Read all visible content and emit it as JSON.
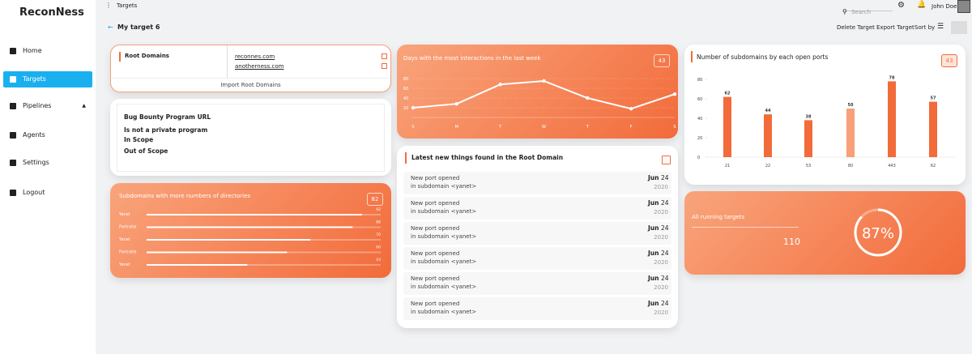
{
  "sidebar": {
    "brand": "ReconNess",
    "nav": [
      "Home",
      "Targets",
      "Pipelines",
      "Agents",
      "Settings",
      "Logout"
    ]
  },
  "topbar": {
    "title": "Targets",
    "search": "Search",
    "user": "John Doe"
  },
  "header": {
    "target": "My target 6",
    "actions": [
      "Delete Target",
      "Export Target",
      "Sort by"
    ]
  },
  "root_domains": {
    "title": "Root Domains",
    "domains": [
      "reconnes.com",
      "anotherness.com"
    ],
    "button": "Import Root Domains"
  },
  "program": {
    "lines": [
      "Bug Bounty Program URL",
      "Is not a private program",
      "In Scope",
      "Out of Scope"
    ]
  },
  "directories": {
    "type": "bar",
    "orientation": "horizontal",
    "title": "Subdomains with more numbers of directories",
    "badge": "82",
    "categories": [
      "Yanet",
      "Portraite",
      "Yanet",
      "Portraite",
      "Yanet"
    ],
    "values": [
      92,
      88,
      70,
      60,
      43
    ],
    "xlim": [
      0,
      100
    ]
  },
  "interactions": {
    "type": "line",
    "title": "Days with the most interactions in the last week",
    "badge": "43",
    "categories": [
      "S",
      "M",
      "T",
      "W",
      "T",
      "F",
      "S"
    ],
    "values": [
      20,
      28,
      68,
      75,
      40,
      18,
      48
    ],
    "ylim": [
      0,
      80
    ],
    "yticks": [
      20,
      40,
      60,
      80
    ]
  },
  "latest": {
    "title": "Latest new things found in the Root Domain",
    "items": [
      {
        "text": "New port opened",
        "sub": "in subdomain <yanet>",
        "month": "Jun",
        "day": "24",
        "year": "2020"
      },
      {
        "text": "New port opened",
        "sub": "in subdomain <yanet>",
        "month": "Jun",
        "day": "24",
        "year": "2020"
      },
      {
        "text": "New port opened",
        "sub": "in subdomain <yanet>",
        "month": "Jun",
        "day": "24",
        "year": "2020"
      },
      {
        "text": "New port opened",
        "sub": "in subdomain <yanet>",
        "month": "Jun",
        "day": "24",
        "year": "2020"
      },
      {
        "text": "New port opened",
        "sub": "in subdomain <yanet>",
        "month": "Jun",
        "day": "24",
        "year": "2020"
      },
      {
        "text": "New port opened",
        "sub": "in subdomain <yanet>",
        "month": "Jun",
        "day": "24",
        "year": "2020"
      }
    ]
  },
  "ports": {
    "type": "bar",
    "title": "Number of subdomains by each open ports",
    "badge": "43",
    "categories": [
      "21",
      "22",
      "53",
      "80",
      "443",
      "62"
    ],
    "values": [
      62,
      44,
      38,
      50,
      78,
      57
    ],
    "colors": [
      "#f26b3a",
      "#f26b3a",
      "#f26b3a",
      "#f7a07a",
      "#f26b3a",
      "#f26b3a"
    ],
    "ylim": [
      0,
      80
    ],
    "yticks": [
      0,
      20,
      40,
      60,
      80
    ]
  },
  "running": {
    "label": "All running targets",
    "count": "110",
    "progress": {
      "value": 87,
      "label": "87%"
    }
  }
}
